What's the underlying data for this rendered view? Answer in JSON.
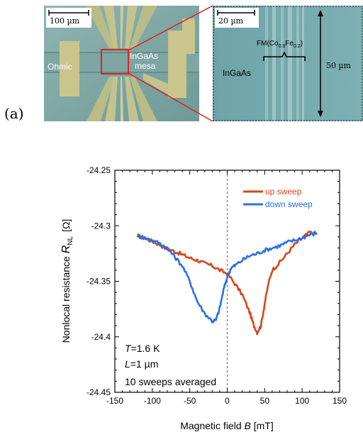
{
  "panel_label": "(a)",
  "left_image": {
    "scale_bar": "100 µm",
    "label_ohmic": "Ohmic",
    "label_mesa_line1": "InGaAs",
    "label_mesa_line2": "mesa"
  },
  "right_image": {
    "scale_bar": "20 µm",
    "label_fm_prefix": "FM(Co",
    "label_fm_sub1": "0.8",
    "label_fm_mid": "Fe",
    "label_fm_sub2": "0.2",
    "label_fm_suffix": ")",
    "label_ingaas": "InGaAs",
    "label_height": "50 µm"
  },
  "chart_data": {
    "type": "line",
    "xlabel_prefix": "Magnetic field ",
    "xlabel_var": "B",
    "xlabel_unit": " [mT]",
    "ylabel_prefix": "Nonlocal resistance ",
    "ylabel_var": "R",
    "ylabel_sub": "NL",
    "ylabel_unit": "[Ω]",
    "xlim": [
      -150,
      150
    ],
    "ylim": [
      -24.45,
      -24.25
    ],
    "x_ticks": [
      -150,
      -100,
      -50,
      0,
      50,
      100,
      150
    ],
    "x_tick_labels": [
      "-150",
      "-100",
      "-50",
      "0",
      "50",
      "100",
      "150"
    ],
    "y_ticks": [
      -24.45,
      -24.4,
      -24.35,
      -24.3,
      -24.25
    ],
    "y_tick_labels": [
      "-24.45",
      "-24.4",
      "-24.35",
      "-24.3",
      "-24.25"
    ],
    "zero_line": 0,
    "legend_position": "top-right",
    "series": [
      {
        "name": "up sweep",
        "color": "#d9461a",
        "x": [
          -120,
          -110,
          -100,
          -90,
          -80,
          -70,
          -60,
          -50,
          -40,
          -30,
          -20,
          -10,
          0,
          10,
          20,
          30,
          35,
          40,
          45,
          50,
          55,
          60,
          70,
          80,
          90,
          100,
          110,
          120
        ],
        "y": [
          -24.309,
          -24.311,
          -24.314,
          -24.317,
          -24.321,
          -24.323,
          -24.326,
          -24.329,
          -24.331,
          -24.334,
          -24.336,
          -24.34,
          -24.343,
          -24.352,
          -24.362,
          -24.378,
          -24.389,
          -24.396,
          -24.39,
          -24.37,
          -24.352,
          -24.34,
          -24.333,
          -24.325,
          -24.317,
          -24.311,
          -24.306,
          -24.307
        ]
      },
      {
        "name": "down sweep",
        "color": "#2a6fe8",
        "x": [
          -120,
          -110,
          -100,
          -90,
          -80,
          -70,
          -60,
          -50,
          -40,
          -30,
          -20,
          -15,
          -10,
          -5,
          0,
          5,
          10,
          20,
          30,
          40,
          50,
          60,
          70,
          80,
          90,
          100,
          110,
          120
        ],
        "y": [
          -24.309,
          -24.311,
          -24.313,
          -24.316,
          -24.32,
          -24.328,
          -24.336,
          -24.35,
          -24.368,
          -24.379,
          -24.386,
          -24.385,
          -24.374,
          -24.358,
          -24.346,
          -24.338,
          -24.336,
          -24.331,
          -24.327,
          -24.325,
          -24.322,
          -24.32,
          -24.318,
          -24.315,
          -24.313,
          -24.311,
          -24.308,
          -24.307
        ]
      }
    ],
    "annotations": {
      "temperature_var": "T",
      "temperature_val": "=1.6 K",
      "length_var": "L",
      "length_val": "=1 µm",
      "averaging": "10 sweeps averaged"
    }
  }
}
